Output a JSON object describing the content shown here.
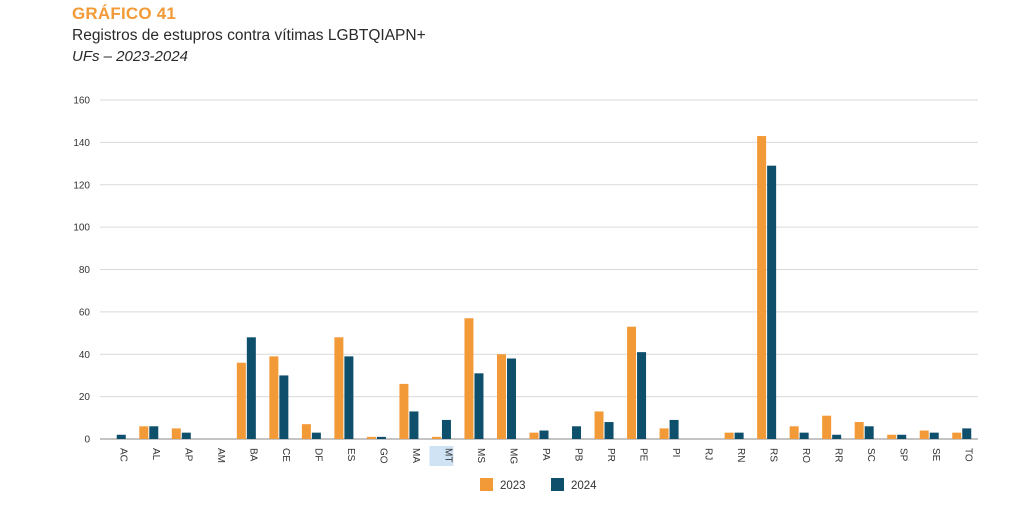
{
  "header": {
    "kicker": "GRÁFICO 41",
    "title": "Registros de estupros contra vítimas LGBTQIAPN+",
    "subtitle": "UFs – 2023-2024"
  },
  "colors": {
    "series_2023": "#F29A38",
    "series_2024": "#0E4F6B",
    "grid": "#D9D9D9",
    "axis": "#888888"
  },
  "chart_data": {
    "type": "bar",
    "categories": [
      "AC",
      "AL",
      "AP",
      "AM",
      "BA",
      "CE",
      "DF",
      "ES",
      "GO",
      "MA",
      "MT",
      "MS",
      "MG",
      "PA",
      "PB",
      "PR",
      "PE",
      "PI",
      "RJ",
      "RN",
      "RS",
      "RO",
      "RR",
      "SC",
      "SP",
      "SE",
      "TO"
    ],
    "series": [
      {
        "name": "2023",
        "values": [
          0,
          6,
          5,
          0,
          36,
          39,
          7,
          48,
          1,
          26,
          1,
          57,
          40,
          3,
          0,
          13,
          53,
          5,
          0,
          3,
          143,
          6,
          11,
          8,
          2,
          4,
          3
        ]
      },
      {
        "name": "2024",
        "values": [
          2,
          6,
          3,
          0,
          48,
          30,
          3,
          39,
          1,
          13,
          9,
          31,
          38,
          4,
          6,
          8,
          41,
          9,
          0,
          3,
          129,
          3,
          2,
          6,
          2,
          3,
          5
        ]
      }
    ],
    "yticks": [
      0,
      20,
      40,
      60,
      80,
      100,
      120,
      140,
      160
    ],
    "ylim": [
      0,
      160
    ],
    "grid": true,
    "legend": "bottom-center",
    "highlighted_category": "MT"
  }
}
